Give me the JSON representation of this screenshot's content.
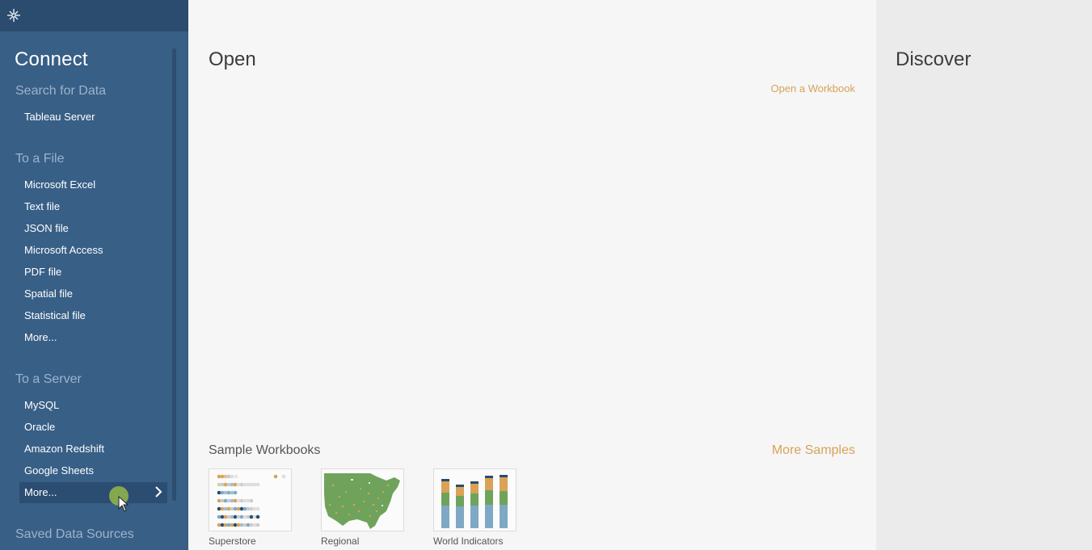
{
  "connect": {
    "heading": "Connect",
    "search_for_data": {
      "title": "Search for Data",
      "items": [
        {
          "label": "Tableau Server"
        }
      ]
    },
    "to_a_file": {
      "title": "To a File",
      "items": [
        {
          "label": "Microsoft Excel"
        },
        {
          "label": "Text file"
        },
        {
          "label": "JSON file"
        },
        {
          "label": "Microsoft Access"
        },
        {
          "label": "PDF file"
        },
        {
          "label": "Spatial file"
        },
        {
          "label": "Statistical file"
        },
        {
          "label": "More..."
        }
      ]
    },
    "to_a_server": {
      "title": "To a Server",
      "items": [
        {
          "label": "MySQL"
        },
        {
          "label": "Oracle"
        },
        {
          "label": "Amazon Redshift"
        },
        {
          "label": "Google Sheets"
        },
        {
          "label": "More..."
        }
      ]
    },
    "saved_data_sources": {
      "title": "Saved Data Sources"
    }
  },
  "open": {
    "heading": "Open",
    "open_workbook_label": "Open a Workbook",
    "sample_workbooks_title": "Sample Workbooks",
    "more_samples_label": "More Samples",
    "samples": [
      {
        "label": "Superstore"
      },
      {
        "label": "Regional"
      },
      {
        "label": "World Indicators"
      }
    ]
  },
  "discover": {
    "heading": "Discover"
  },
  "colors": {
    "left_pane": "#385f86",
    "left_topbar": "#2b4c6e",
    "accent_link": "#d9a257",
    "hover_dot": "#8eb14b"
  },
  "icons": {
    "logo": "tableau-logo-icon",
    "chevron": "chevron-right-icon",
    "cursor": "mouse-cursor-icon"
  }
}
